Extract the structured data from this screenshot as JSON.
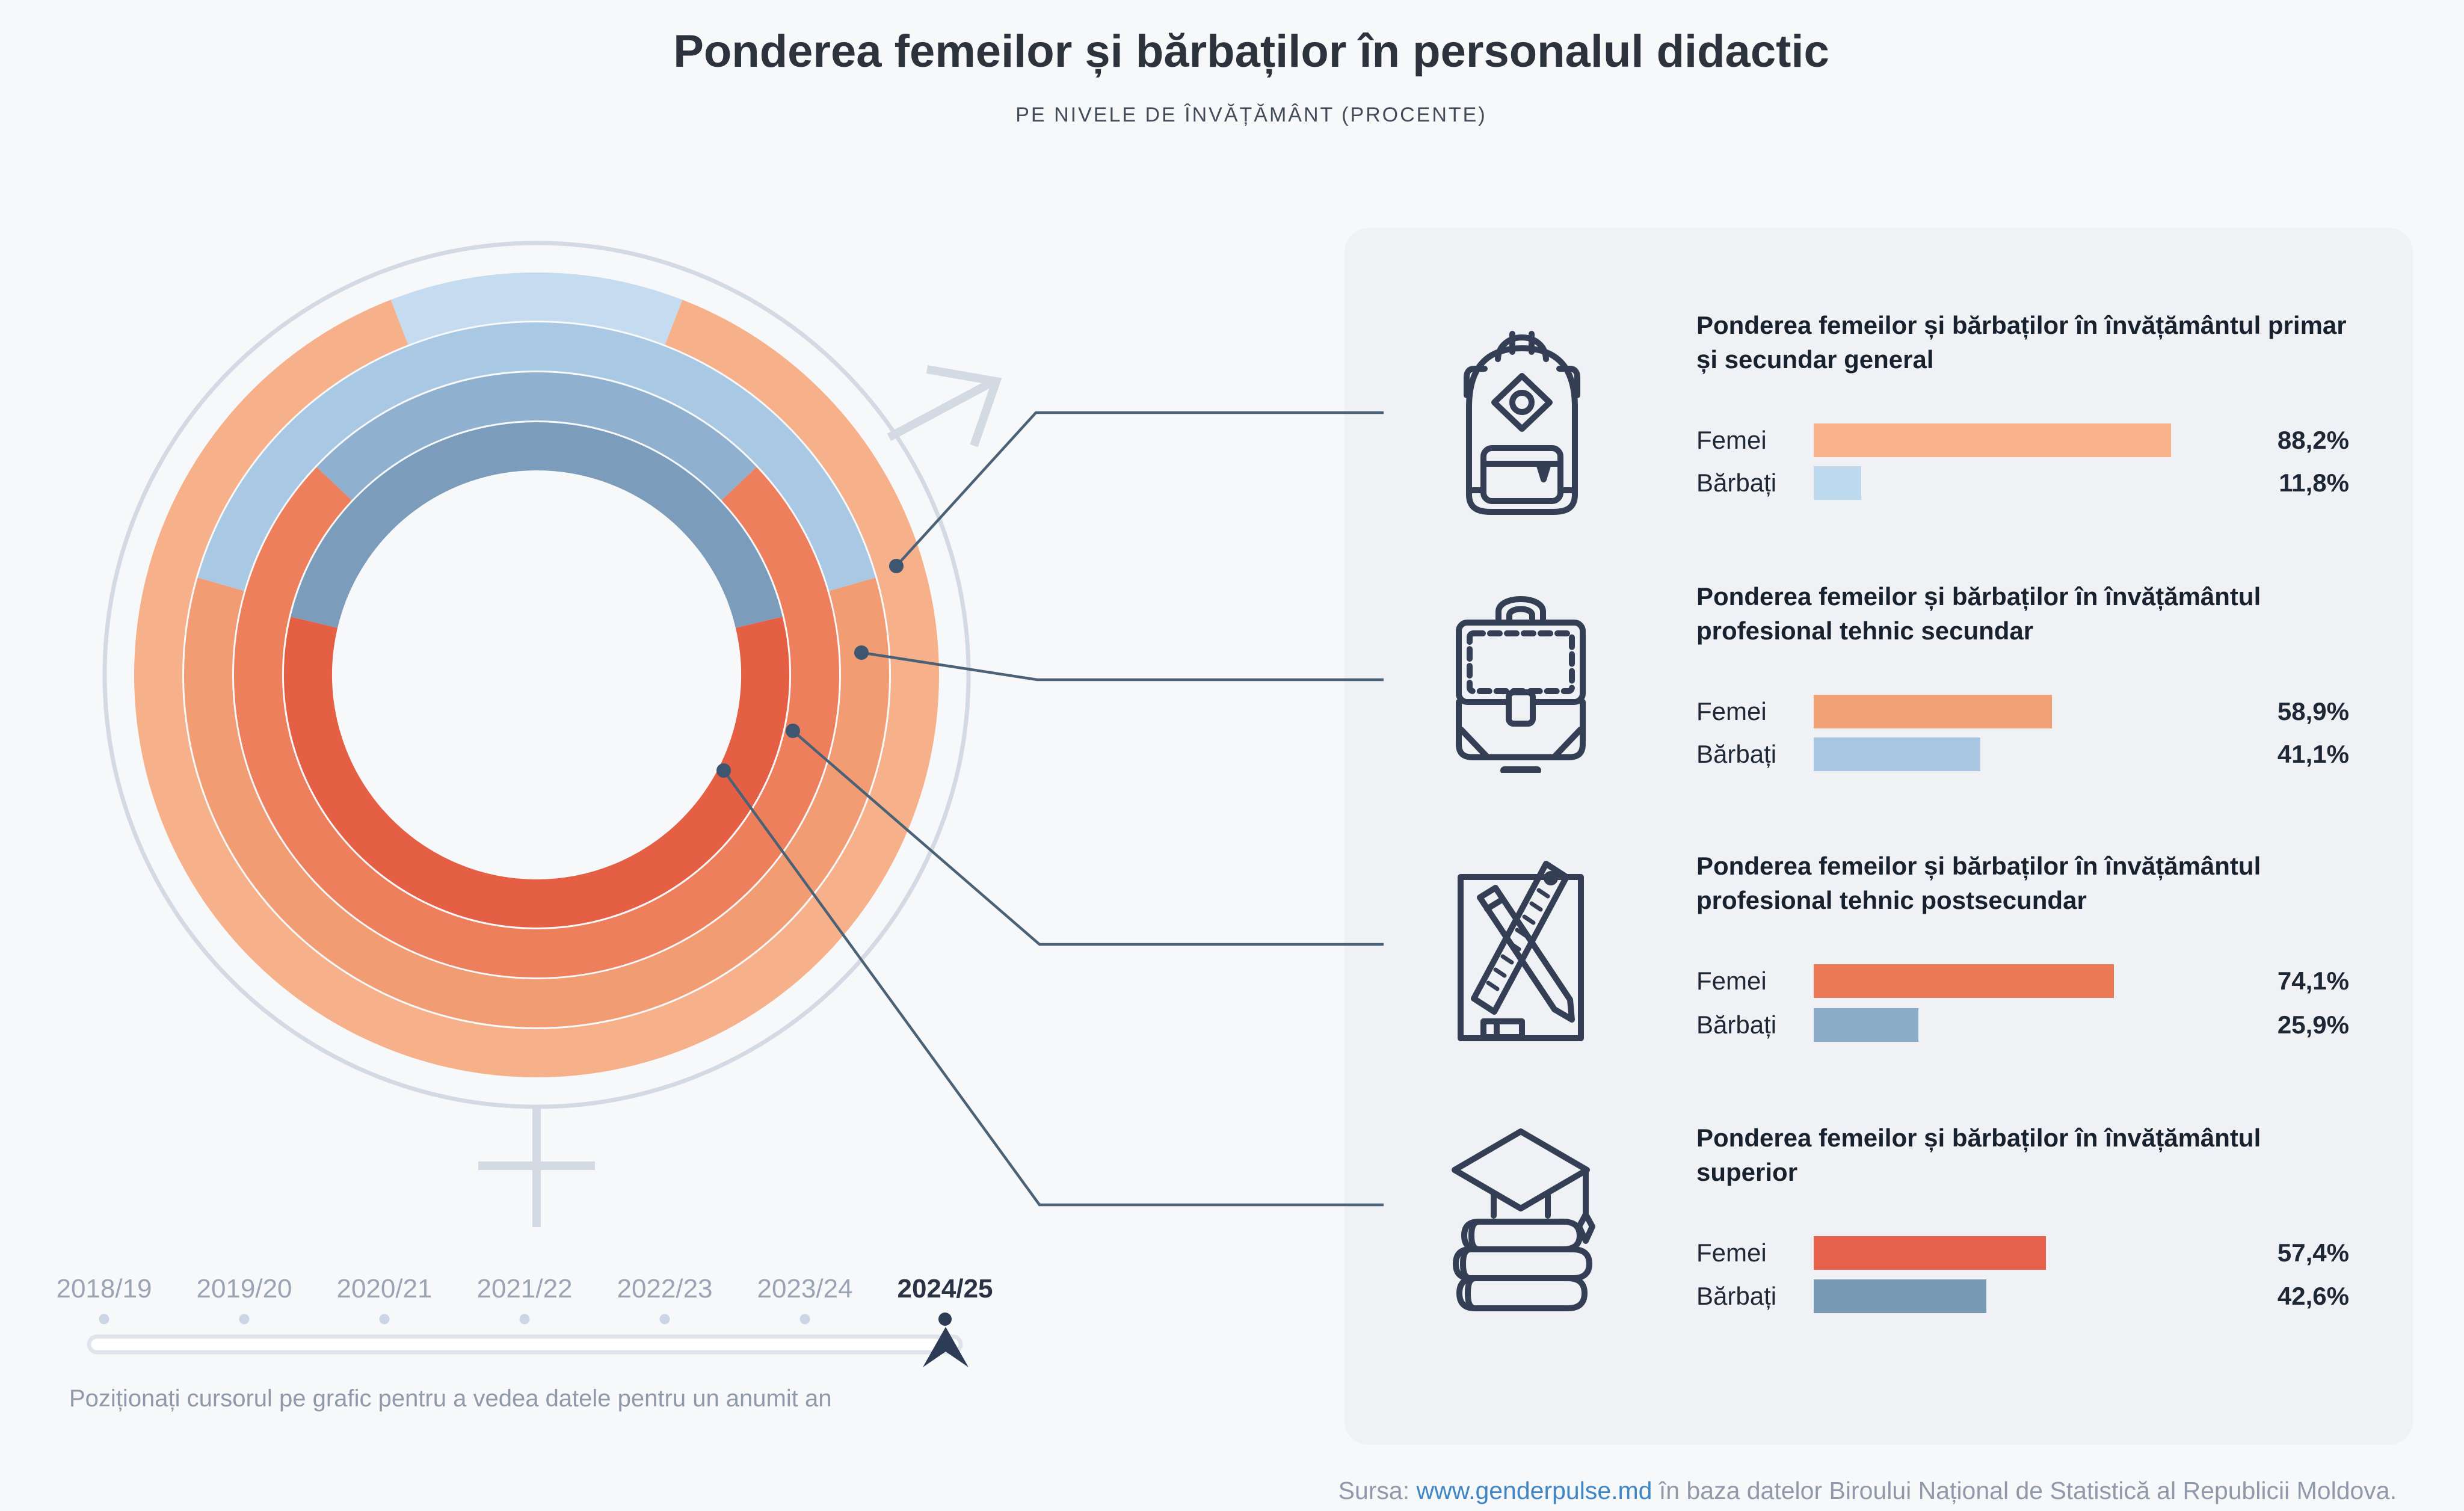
{
  "header": {
    "title": "Ponderea femeilor și bărbaților în personalul didactic",
    "subtitle": "PE NIVELE DE ÎNVĂȚĂMÂNT (PROCENTE)"
  },
  "chart_data": {
    "type": "donut",
    "title": "Ponderea femeilor și bărbaților în personalul didactic",
    "subtitle": "PE NIVELE DE ÎNVĂȚĂMÂNT (PROCENTE)",
    "unit": "percent",
    "year_shown": "2024/25",
    "legend": [
      "Femei",
      "Bărbați"
    ],
    "rings_outer_to_inner": [
      {
        "level": "Învățământul primar și secundar general",
        "femei_pct": 88.2,
        "barbati_pct": 11.8,
        "femei_color": "#f7b18a",
        "barbati_color": "#c5dbef"
      },
      {
        "level": "Învățământul profesional tehnic secundar",
        "femei_pct": 58.9,
        "barbati_pct": 41.1,
        "femei_color": "#f29c74",
        "barbati_color": "#a9c8e3"
      },
      {
        "level": "Învățământul profesional tehnic postsecundar",
        "femei_pct": 74.1,
        "barbati_pct": 25.9,
        "femei_color": "#ee7f5c",
        "barbati_color": "#8fb0cf"
      },
      {
        "level": "Învățământul superior",
        "femei_pct": 57.4,
        "barbati_pct": 42.6,
        "femei_color": "#e55f44",
        "barbati_color": "#7b9cba"
      }
    ],
    "x_years": [
      "2018/19",
      "2019/20",
      "2020/21",
      "2021/22",
      "2022/23",
      "2023/24",
      "2024/25"
    ]
  },
  "sections": [
    {
      "title": "Ponderea femeilor și bărbaților în învățământul primar și secundar general",
      "icon": "backpack-icon",
      "rows": [
        {
          "label": "Femei",
          "pct": 88.2,
          "display": "88,2%",
          "color": "#f8b28c"
        },
        {
          "label": "Bărbați",
          "pct": 11.8,
          "display": "11,8%",
          "color": "#bcd9ee"
        }
      ]
    },
    {
      "title": "Ponderea femeilor și bărbaților în învățământul profesional tehnic secundar",
      "icon": "briefcase-icon",
      "rows": [
        {
          "label": "Femei",
          "pct": 58.9,
          "display": "58,9%",
          "color": "#f2a076"
        },
        {
          "label": "Bărbați",
          "pct": 41.1,
          "display": "41,1%",
          "color": "#a9c7e2"
        }
      ]
    },
    {
      "title": "Ponderea femeilor și bărbaților în învățământul profesional tehnic postsecundar",
      "icon": "pencil-ruler-icon",
      "rows": [
        {
          "label": "Femei",
          "pct": 74.1,
          "display": "74,1%",
          "color": "#ec7956"
        },
        {
          "label": "Bărbați",
          "pct": 25.9,
          "display": "25,9%",
          "color": "#8badca"
        }
      ]
    },
    {
      "title": "Ponderea femeilor și bărbaților în învățământul superior",
      "icon": "graduation-cap-icon",
      "rows": [
        {
          "label": "Femei",
          "pct": 57.4,
          "display": "57,4%",
          "color": "#e7614b"
        },
        {
          "label": "Bărbați",
          "pct": 42.6,
          "display": "42,6%",
          "color": "#7699b4"
        }
      ]
    }
  ],
  "timeline": {
    "years": [
      "2018/19",
      "2019/20",
      "2020/21",
      "2021/22",
      "2022/23",
      "2023/24",
      "2024/25"
    ],
    "active_index": 6,
    "inactive_text_color": "#9aa4b5",
    "active_text_color": "#2a3245",
    "inactive_dot_color": "#ccd5e4",
    "active_dot_color": "#2d3b55",
    "instruction": "Poziționați cursorul pe grafic pentru a vedea datele pentru un anumit an"
  },
  "source": {
    "prefix": "Sursa: ",
    "link": "www.genderpulse.md",
    "suffix": " în baza datelor Biroului Național de Statistică al Republicii Moldova.",
    "link_color": "#3e86c5"
  },
  "colors": {
    "page_bg": "#f7f8fa",
    "panel_bg": "#eff1f5",
    "decor_gray": "#d3dae4",
    "callout": "#4b6175",
    "icon_navy": "#343e55"
  }
}
